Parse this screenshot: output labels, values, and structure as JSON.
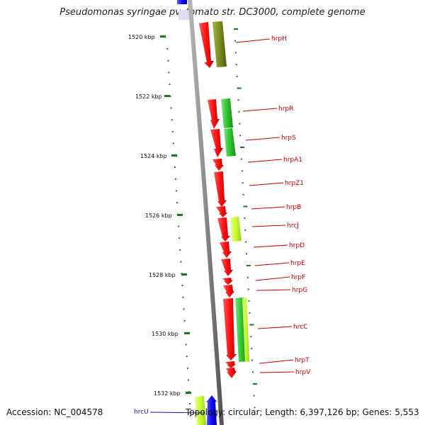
{
  "title": "Pseudomonas syringae pv. tomato str. DC3000, complete genome",
  "footer": {
    "accession": "Accession: NC_004578",
    "stats": "Topology: circular; Length: 6,397,126 bp; Genes: 5,553"
  },
  "ticks": [
    "1520 kbp",
    "1522 kbp",
    "1524 kbp",
    "1526 kbp",
    "1528 kbp",
    "1530 kbp",
    "1532 kbp"
  ],
  "genes": [
    "hrpH",
    "hrpR",
    "hrpS",
    "hrpA1",
    "hrpZ1",
    "hrpB",
    "hrcJ",
    "hrpD",
    "hrpE",
    "hrpF",
    "hrpG",
    "hrcC",
    "hrpT",
    "hrpV",
    "hrcU"
  ],
  "colors": {
    "cds": "#ff1a1a",
    "green": "#33cc33",
    "olive": "#7a8c1e",
    "lime": "#c8ff33",
    "blue": "#1010ff",
    "label": "#cc0000",
    "tick": "#1a7a1a"
  }
}
